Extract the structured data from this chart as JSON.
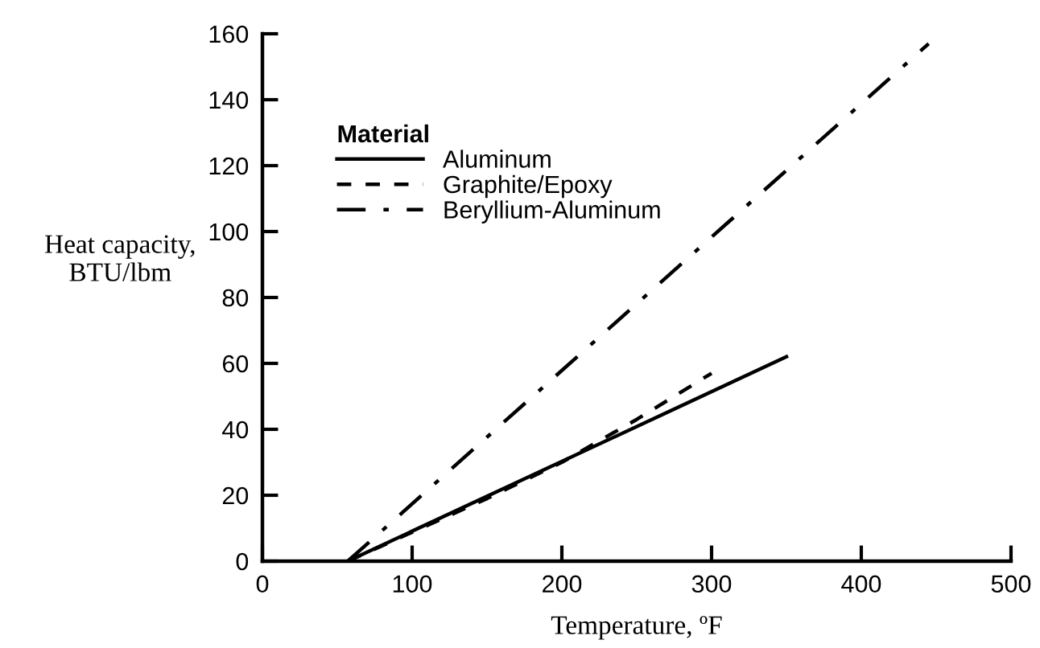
{
  "chart_data": {
    "type": "line",
    "xlabel": "Temperature, ºF",
    "ylabel": "Heat capacity,\nBTU/lbm",
    "legend_title": "Material",
    "xlim": [
      0,
      500
    ],
    "xticks": [
      0,
      100,
      200,
      300,
      400,
      500
    ],
    "ylim": [
      0,
      160
    ],
    "yticks": [
      0,
      20,
      40,
      60,
      80,
      100,
      120,
      140,
      160
    ],
    "grid": false,
    "legend": "top left",
    "marker": "none",
    "series": [
      {
        "name": "Aluminum",
        "color": "#000000",
        "line_style": "solid",
        "x": [
          57,
          350
        ],
        "values": [
          0,
          62
        ]
      },
      {
        "name": "Graphite/Epoxy",
        "color": "#000000",
        "line_style": "dashed",
        "x": [
          57,
          150,
          200,
          250,
          300
        ],
        "values": [
          0,
          19,
          30,
          43,
          57
        ]
      },
      {
        "name": "Beryllium-Aluminum",
        "color": "#000000",
        "line_style": "dashdot",
        "x": [
          57,
          445
        ],
        "values": [
          0,
          157
        ]
      }
    ]
  }
}
